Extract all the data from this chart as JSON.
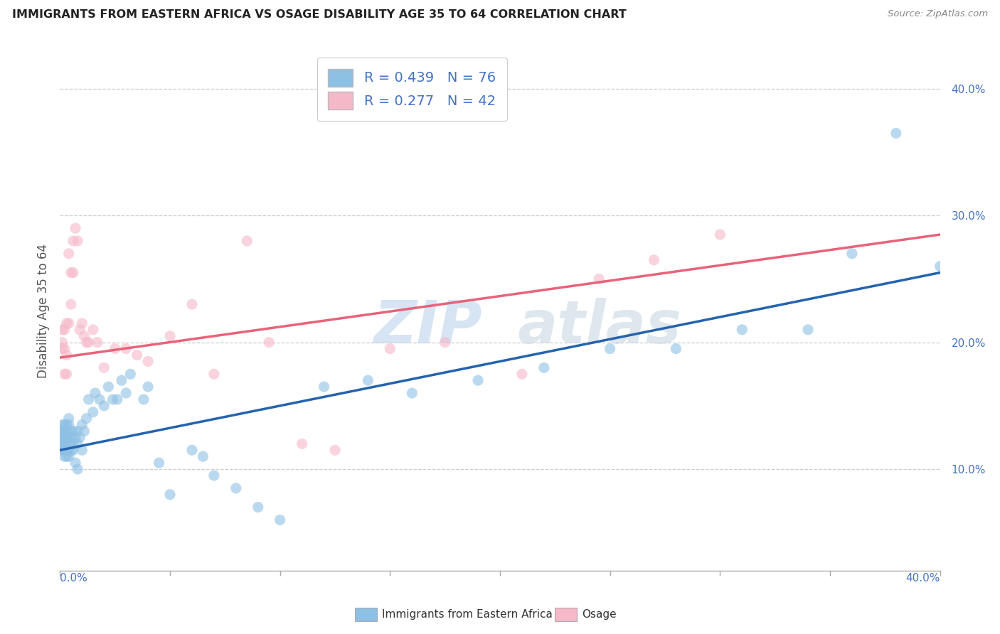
{
  "title": "IMMIGRANTS FROM EASTERN AFRICA VS OSAGE DISABILITY AGE 35 TO 64 CORRELATION CHART",
  "source": "Source: ZipAtlas.com",
  "ylabel": "Disability Age 35 to 64",
  "xlim": [
    0.0,
    0.4
  ],
  "ylim": [
    0.02,
    0.43
  ],
  "blue_R": 0.439,
  "blue_N": 76,
  "pink_R": 0.277,
  "pink_N": 42,
  "blue_color": "#8ec0e4",
  "pink_color": "#f5b8c8",
  "blue_line_color": "#2563ae",
  "pink_line_color": "#e8637a",
  "watermark_zip": "ZIP",
  "watermark_atlas": "atlas",
  "legend_label_blue": "Immigrants from Eastern Africa",
  "legend_label_pink": "Osage",
  "blue_scatter_x": [
    0.001,
    0.001,
    0.001,
    0.001,
    0.001,
    0.001,
    0.001,
    0.001,
    0.002,
    0.002,
    0.002,
    0.002,
    0.002,
    0.002,
    0.002,
    0.003,
    0.003,
    0.003,
    0.003,
    0.003,
    0.003,
    0.004,
    0.004,
    0.004,
    0.004,
    0.004,
    0.005,
    0.005,
    0.005,
    0.005,
    0.006,
    0.006,
    0.006,
    0.007,
    0.007,
    0.008,
    0.008,
    0.008,
    0.009,
    0.01,
    0.01,
    0.011,
    0.012,
    0.013,
    0.015,
    0.016,
    0.018,
    0.02,
    0.022,
    0.024,
    0.026,
    0.028,
    0.03,
    0.032,
    0.038,
    0.04,
    0.045,
    0.05,
    0.06,
    0.065,
    0.07,
    0.08,
    0.09,
    0.1,
    0.12,
    0.14,
    0.16,
    0.19,
    0.22,
    0.25,
    0.28,
    0.31,
    0.34,
    0.36,
    0.38,
    0.4
  ],
  "blue_scatter_y": [
    0.115,
    0.115,
    0.12,
    0.125,
    0.125,
    0.13,
    0.13,
    0.135,
    0.11,
    0.115,
    0.12,
    0.12,
    0.125,
    0.13,
    0.135,
    0.11,
    0.115,
    0.12,
    0.125,
    0.13,
    0.135,
    0.11,
    0.115,
    0.125,
    0.135,
    0.14,
    0.115,
    0.12,
    0.125,
    0.13,
    0.115,
    0.12,
    0.13,
    0.105,
    0.125,
    0.1,
    0.12,
    0.13,
    0.125,
    0.115,
    0.135,
    0.13,
    0.14,
    0.155,
    0.145,
    0.16,
    0.155,
    0.15,
    0.165,
    0.155,
    0.155,
    0.17,
    0.16,
    0.175,
    0.155,
    0.165,
    0.105,
    0.08,
    0.115,
    0.11,
    0.095,
    0.085,
    0.07,
    0.06,
    0.165,
    0.17,
    0.16,
    0.17,
    0.18,
    0.195,
    0.195,
    0.21,
    0.21,
    0.27,
    0.365,
    0.26
  ],
  "pink_scatter_x": [
    0.001,
    0.001,
    0.001,
    0.002,
    0.002,
    0.002,
    0.003,
    0.003,
    0.003,
    0.004,
    0.004,
    0.005,
    0.005,
    0.006,
    0.006,
    0.007,
    0.008,
    0.009,
    0.01,
    0.011,
    0.012,
    0.013,
    0.015,
    0.017,
    0.02,
    0.025,
    0.03,
    0.035,
    0.04,
    0.05,
    0.06,
    0.07,
    0.085,
    0.095,
    0.11,
    0.125,
    0.15,
    0.175,
    0.21,
    0.245,
    0.27,
    0.3
  ],
  "pink_scatter_y": [
    0.195,
    0.2,
    0.21,
    0.175,
    0.195,
    0.21,
    0.175,
    0.19,
    0.215,
    0.215,
    0.27,
    0.23,
    0.255,
    0.255,
    0.28,
    0.29,
    0.28,
    0.21,
    0.215,
    0.205,
    0.2,
    0.2,
    0.21,
    0.2,
    0.18,
    0.195,
    0.195,
    0.19,
    0.185,
    0.205,
    0.23,
    0.175,
    0.28,
    0.2,
    0.12,
    0.115,
    0.195,
    0.2,
    0.175,
    0.25,
    0.265,
    0.285
  ]
}
